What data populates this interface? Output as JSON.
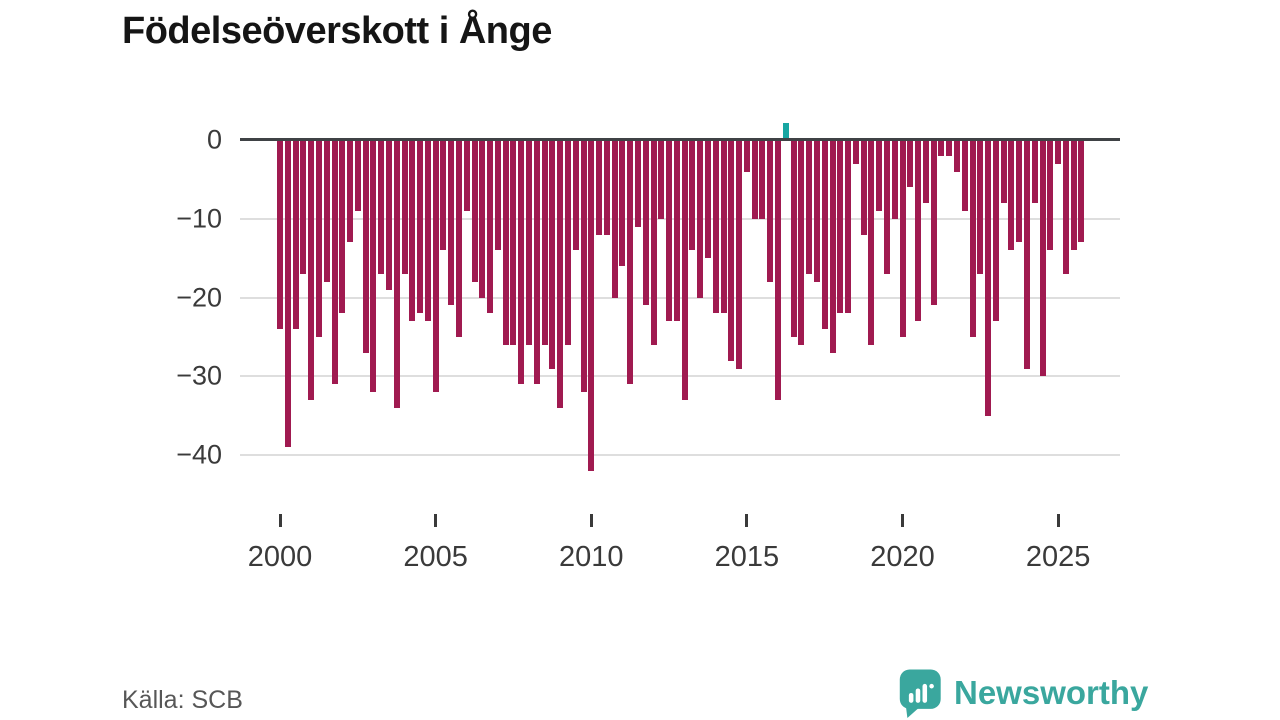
{
  "header": {
    "title": "Födelseöverskott i Ånge"
  },
  "footer": {
    "source": "Källa: SCB",
    "brand": "Newsworthy",
    "brand_color": "#3aa79e",
    "brand_icon": "newsworthy-bubble-chart-icon"
  },
  "chart_data": {
    "type": "bar",
    "title": "Födelseöverskott i Ånge",
    "frequency": "quarterly",
    "x": [
      "2000Q1",
      "2000Q2",
      "2000Q3",
      "2000Q4",
      "2001Q1",
      "2001Q2",
      "2001Q3",
      "2001Q4",
      "2002Q1",
      "2002Q2",
      "2002Q3",
      "2002Q4",
      "2003Q1",
      "2003Q2",
      "2003Q3",
      "2003Q4",
      "2004Q1",
      "2004Q2",
      "2004Q3",
      "2004Q4",
      "2005Q1",
      "2005Q2",
      "2005Q3",
      "2005Q4",
      "2006Q1",
      "2006Q2",
      "2006Q3",
      "2006Q4",
      "2007Q1",
      "2007Q2",
      "2007Q3",
      "2007Q4",
      "2008Q1",
      "2008Q2",
      "2008Q3",
      "2008Q4",
      "2009Q1",
      "2009Q2",
      "2009Q3",
      "2009Q4",
      "2010Q1",
      "2010Q2",
      "2010Q3",
      "2010Q4",
      "2011Q1",
      "2011Q2",
      "2011Q3",
      "2011Q4",
      "2012Q1",
      "2012Q2",
      "2012Q3",
      "2012Q4",
      "2013Q1",
      "2013Q2",
      "2013Q3",
      "2013Q4",
      "2014Q1",
      "2014Q2",
      "2014Q3",
      "2014Q4",
      "2015Q1",
      "2015Q2",
      "2015Q3",
      "2015Q4",
      "2016Q1",
      "2016Q2",
      "2016Q3",
      "2016Q4",
      "2017Q1",
      "2017Q2",
      "2017Q3",
      "2017Q4",
      "2018Q1",
      "2018Q2",
      "2018Q3",
      "2018Q4",
      "2019Q1",
      "2019Q2",
      "2019Q3",
      "2019Q4",
      "2020Q1",
      "2020Q2",
      "2020Q3",
      "2020Q4",
      "2021Q1",
      "2021Q2",
      "2021Q3",
      "2021Q4",
      "2022Q1",
      "2022Q2",
      "2022Q3",
      "2022Q4",
      "2023Q1",
      "2023Q2",
      "2023Q3",
      "2023Q4",
      "2024Q1",
      "2024Q2",
      "2024Q3",
      "2024Q4",
      "2025Q1",
      "2025Q2",
      "2025Q3",
      "2025Q4"
    ],
    "values": [
      -24,
      -39,
      -24,
      -17,
      -33,
      -25,
      -18,
      -31,
      -22,
      -13,
      -9,
      -27,
      -32,
      -17,
      -19,
      -34,
      -17,
      -23,
      -22,
      -23,
      -32,
      -14,
      -21,
      -25,
      -9,
      -18,
      -20,
      -22,
      -14,
      -26,
      -26,
      -31,
      -26,
      -31,
      -26,
      -29,
      -34,
      -26,
      -14,
      -32,
      -42,
      -12,
      -12,
      -20,
      -16,
      -31,
      -11,
      -21,
      -26,
      -10,
      -23,
      -23,
      -33,
      -14,
      -20,
      -15,
      -22,
      -22,
      -28,
      -29,
      -4,
      -10,
      -10,
      -18,
      -33,
      2,
      -25,
      -26,
      -17,
      -18,
      -24,
      -27,
      -22,
      -22,
      -3,
      -12,
      -26,
      -9,
      -17,
      -10,
      -25,
      -6,
      -23,
      -8,
      -21,
      -2,
      -2,
      -4,
      -9,
      -25,
      -17,
      -35,
      -23,
      -8,
      -14,
      -13,
      -29,
      -8,
      -30,
      -14,
      -3,
      -17,
      -14,
      -13
    ],
    "x_ticks": [
      {
        "year": 2000,
        "label": "2000"
      },
      {
        "year": 2005,
        "label": "2005"
      },
      {
        "year": 2010,
        "label": "2010"
      },
      {
        "year": 2015,
        "label": "2015"
      },
      {
        "year": 2020,
        "label": "2020"
      },
      {
        "year": 2025,
        "label": "2025"
      }
    ],
    "y_ticks": [
      {
        "value": 0,
        "label": "0"
      },
      {
        "value": -10,
        "label": "−10"
      },
      {
        "value": -20,
        "label": "−20"
      },
      {
        "value": -30,
        "label": "−30"
      },
      {
        "value": -40,
        "label": "−40"
      }
    ],
    "ylim": [
      -44,
      3
    ],
    "grid": "horizontal",
    "legend": "none",
    "colors": {
      "negative_bar": "#a01a50",
      "positive_bar": "#17a6a2",
      "zero_axis": "#3f4245",
      "gridline": "#dedede",
      "tick_text": "#3a3a3a"
    }
  }
}
